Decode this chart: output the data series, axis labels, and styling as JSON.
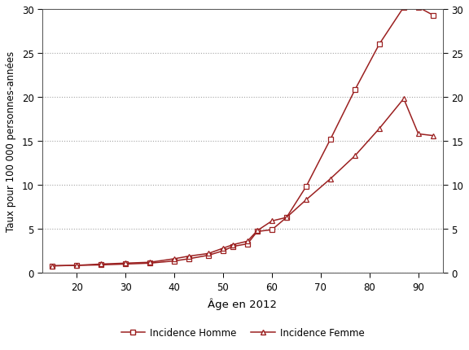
{
  "homme_x": [
    15,
    20,
    25,
    30,
    35,
    40,
    43,
    47,
    50,
    52,
    55,
    57,
    60,
    63,
    67,
    72,
    77,
    82,
    87,
    90,
    93
  ],
  "homme_y": [
    0.8,
    0.85,
    0.9,
    1.0,
    1.1,
    1.35,
    1.6,
    2.0,
    2.5,
    3.0,
    3.3,
    4.7,
    4.9,
    6.3,
    9.8,
    15.2,
    20.8,
    26.0,
    30.2,
    30.2,
    29.3
  ],
  "femme_x": [
    15,
    20,
    25,
    30,
    35,
    40,
    43,
    47,
    50,
    52,
    55,
    57,
    60,
    63,
    67,
    72,
    77,
    82,
    87,
    90,
    93
  ],
  "femme_y": [
    0.8,
    0.85,
    1.0,
    1.1,
    1.2,
    1.6,
    1.9,
    2.2,
    2.8,
    3.2,
    3.6,
    4.8,
    5.9,
    6.3,
    8.3,
    10.7,
    13.3,
    16.4,
    19.8,
    15.8,
    15.6
  ],
  "color": "#9b2020",
  "xlabel": "Âge en 2012",
  "ylabel": "Taux pour 100 000 personnes-années",
  "ylim": [
    0,
    30
  ],
  "xlim": [
    13,
    95
  ],
  "yticks": [
    0,
    5,
    10,
    15,
    20,
    25,
    30
  ],
  "xticks": [
    20,
    30,
    40,
    50,
    60,
    70,
    80,
    90
  ],
  "legend_homme": "Incidence Homme",
  "legend_femme": "Incidence Femme",
  "bg_color": "#ffffff",
  "grid_color": "#999999",
  "spine_color": "#555555"
}
